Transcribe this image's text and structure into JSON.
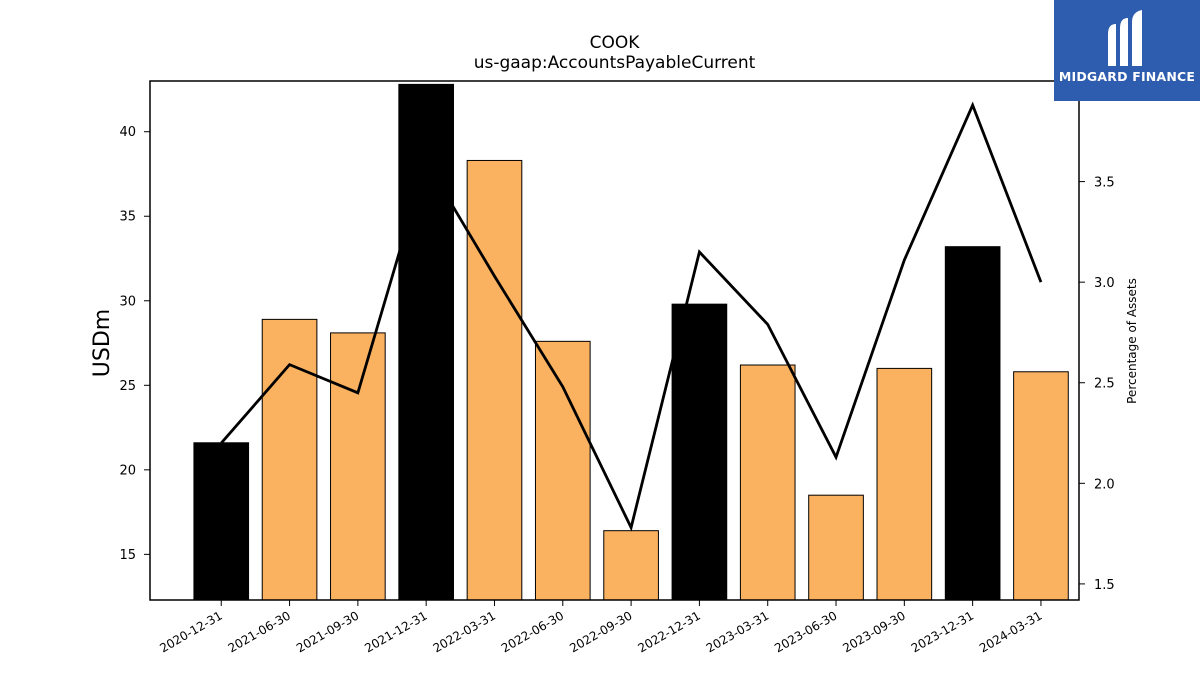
{
  "logo": {
    "text": "MIDGARD FINANCE",
    "color": "#2e5cae"
  },
  "chart_data": {
    "type": "bar",
    "title": "COOK",
    "subtitle": "us-gaap:AccountsPayableCurrent",
    "ylabel": "USDm",
    "y2label": "Percentage of Assets",
    "ylim": [
      12.3,
      43.0
    ],
    "y2lim": [
      1.42,
      4.0
    ],
    "yticks": [
      15,
      20,
      25,
      30,
      35,
      40
    ],
    "y2ticks": [
      "1.5",
      "2.0",
      "2.5",
      "3.0",
      "3.5"
    ],
    "categories": [
      "2020-12-31",
      "2021-06-30",
      "2021-09-30",
      "2021-12-31",
      "2022-03-31",
      "2022-06-30",
      "2022-09-30",
      "2022-12-31",
      "2023-03-31",
      "2023-06-30",
      "2023-09-30",
      "2023-12-31",
      "2024-03-31"
    ],
    "series": [
      {
        "type": "bar",
        "values": [
          21.6,
          28.9,
          28.1,
          42.8,
          38.3,
          27.6,
          16.4,
          29.8,
          26.2,
          18.5,
          26.0,
          33.2,
          25.8
        ]
      },
      {
        "type": "line",
        "values": [
          2.2,
          2.59,
          2.45,
          3.6,
          3.03,
          2.48,
          1.78,
          3.15,
          2.79,
          2.13,
          3.11,
          3.88,
          3.0
        ]
      }
    ],
    "bar_colors": [
      "#000000",
      "#fbb260",
      "#fbb260",
      "#000000",
      "#fbb260",
      "#fbb260",
      "#fbb260",
      "#000000",
      "#fbb260",
      "#fbb260",
      "#fbb260",
      "#000000",
      "#fbb260"
    ],
    "line_color": "#000000",
    "grid": false,
    "legend": "none"
  }
}
